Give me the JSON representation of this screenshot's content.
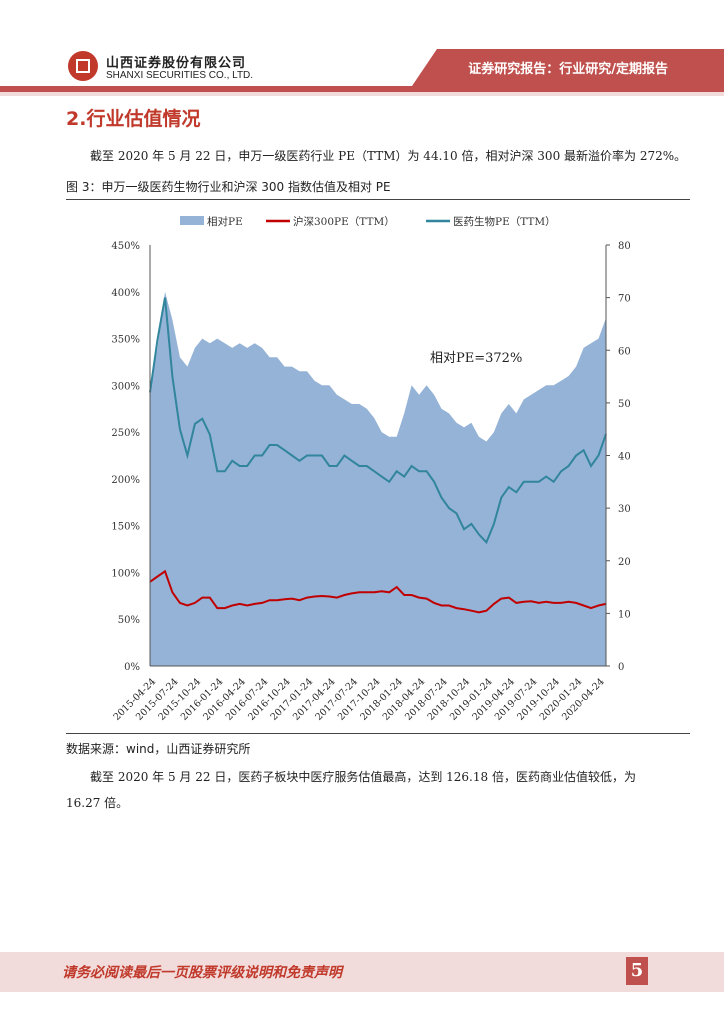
{
  "header": {
    "company_cn": "山西证券股份有限公司",
    "company_en": "SHANXI SECURITIES CO., LTD.",
    "report_type": "证券研究报告：行业研究/定期报告"
  },
  "section_title": "2.行业估值情况",
  "para1": "截至 2020 年 5 月 22 日，申万一级医药行业 PE（TTM）为 44.10 倍，相对沪深 300 最新溢价率为 272%。",
  "figure_title": "图 3：申万一级医药生物行业和沪深 300 指数估值及相对 PE",
  "source": "数据来源：wind，山西证券研究所",
  "para2": "截至 2020 年 5 月 22 日，医药子板块中医疗服务估值最高，达到 126.18 倍，医药商业估值较低，为 16.27 倍。",
  "footer": {
    "disclaimer": "请务必阅读最后一页股票评级说明和免责声明",
    "page": "5"
  },
  "chart_data": {
    "type": "area+line",
    "legend": [
      "相对PE",
      "沪深300PE（TTM）",
      "医药生物PE（TTM）"
    ],
    "legend_position": "top",
    "colors": {
      "rel": "#95b3d7",
      "hs300": "#c00000",
      "pharma": "#31859c"
    },
    "annotation": "相对PE=372%",
    "y_left": {
      "ticks": [
        "0%",
        "50%",
        "100%",
        "150%",
        "200%",
        "250%",
        "300%",
        "350%",
        "400%",
        "450%"
      ],
      "range": [
        0,
        450
      ]
    },
    "y_right": {
      "ticks": [
        "0",
        "10",
        "20",
        "30",
        "40",
        "50",
        "60",
        "70",
        "80"
      ],
      "range": [
        0,
        80
      ]
    },
    "x_ticks": [
      "2015-04-24",
      "2015-07-24",
      "2015-10-24",
      "2016-01-24",
      "2016-04-24",
      "2016-07-24",
      "2016-10-24",
      "2017-01-24",
      "2017-04-24",
      "2017-07-24",
      "2017-10-24",
      "2018-01-24",
      "2018-04-24",
      "2018-07-24",
      "2018-10-24",
      "2019-01-24",
      "2019-04-24",
      "2019-07-24",
      "2019-10-24",
      "2020-01-24",
      "2020-04-24"
    ],
    "months_start": "2015-04",
    "relative_pe_pct": [
      300,
      340,
      400,
      370,
      330,
      320,
      340,
      350,
      345,
      350,
      345,
      340,
      345,
      340,
      345,
      340,
      330,
      330,
      320,
      320,
      315,
      315,
      305,
      300,
      300,
      290,
      285,
      280,
      280,
      275,
      265,
      250,
      245,
      245,
      270,
      300,
      290,
      300,
      290,
      275,
      270,
      260,
      255,
      260,
      245,
      240,
      250,
      270,
      280,
      270,
      285,
      290,
      295,
      300,
      300,
      305,
      310,
      320,
      340,
      345,
      350,
      372
    ],
    "hs300_pe": [
      16,
      17,
      18,
      14,
      12,
      11.5,
      12,
      13,
      13,
      11,
      11,
      11.5,
      11.8,
      11.5,
      11.8,
      12,
      12.5,
      12.5,
      12.7,
      12.8,
      12.5,
      13,
      13.2,
      13.3,
      13.2,
      13,
      13.5,
      13.8,
      14,
      14,
      14,
      14.2,
      14,
      15,
      13.5,
      13.5,
      13,
      12.8,
      12,
      11.5,
      11.5,
      11,
      10.8,
      10.5,
      10.2,
      10.5,
      11.8,
      12.8,
      13,
      12,
      12.2,
      12.3,
      12,
      12.2,
      12,
      12,
      12.2,
      12,
      11.5,
      11,
      11.5,
      11.8
    ],
    "pharma_pe": [
      52,
      62,
      70,
      55,
      45,
      40,
      46,
      47,
      44,
      37,
      37,
      39,
      38,
      38,
      40,
      40,
      42,
      42,
      41,
      40,
      39,
      40,
      40,
      40,
      38,
      38,
      40,
      39,
      38,
      38,
      37,
      36,
      35,
      37,
      36,
      38,
      37,
      37,
      35,
      32,
      30,
      29,
      26,
      27,
      25,
      23.5,
      27,
      32,
      34,
      33,
      35,
      35,
      35,
      36,
      35,
      37,
      38,
      40,
      41,
      38,
      40,
      44.1
    ]
  }
}
